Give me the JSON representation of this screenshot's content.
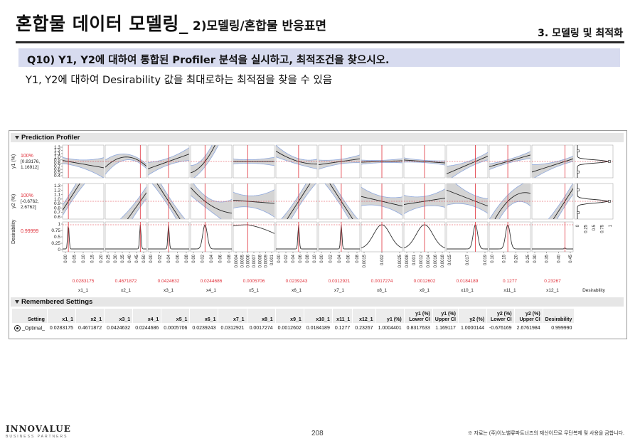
{
  "header": {
    "title": "혼합물 데이터 모델링_",
    "subtitle": "2)모델링/혼합물 반응표면",
    "section": "3. 모델링 및 최적화"
  },
  "question": "Q10) Y1, Y2에 대하여 통합된 Profiler 분석을 실시하고, 최적조건을 찾으시오.",
  "description": "Y1, Y2에 대하여 Desirability 값을 최대로하는 최적점을 찾을 수 있음",
  "profiler": {
    "title": "Prediction Profiler",
    "rows": [
      {
        "label": "y1 (%)",
        "pct": "100%",
        "ci": [
          "[0.83176,",
          "1.16912]"
        ],
        "ticks": [
          "1.3",
          "1.2",
          "1.1",
          "1.0",
          "0.9",
          "0.8",
          "0.7",
          "0.6",
          "0.5",
          "0.4"
        ]
      },
      {
        "label": "y2 (%)",
        "pct": "100%",
        "ci": [
          "[-0.6762,",
          "2.6762]"
        ],
        "ticks": [
          "1.3",
          "1.2",
          "1.1",
          "1.0",
          "0.9",
          "0.8",
          "0.7",
          "0.6"
        ]
      },
      {
        "label": "Desirability",
        "pct": "0.99999",
        "ci": [],
        "ticks": [
          "1",
          "0.75",
          "0.5",
          "0.25",
          "0"
        ]
      }
    ],
    "factors": [
      {
        "name": "x1_1",
        "value": "0.0283175",
        "ticks": [
          "0.00",
          "0.05",
          "0.10",
          "0.15",
          "0.20"
        ]
      },
      {
        "name": "x2_1",
        "value": "0.4671872",
        "ticks": [
          "0.25",
          "0.30",
          "0.35",
          "0.40",
          "0.45",
          "0.50"
        ]
      },
      {
        "name": "x3_1",
        "value": "0.0424632",
        "ticks": [
          "0.00",
          "0.02",
          "0.04",
          "0.06",
          "0.08"
        ]
      },
      {
        "name": "x4_1",
        "value": "0.0244686",
        "ticks": [
          "0.00",
          "0.02",
          "0.04",
          "0.06",
          "0.08"
        ]
      },
      {
        "name": "x5_1",
        "value": "0.0005706",
        "ticks": [
          "0.0004",
          "0.0005",
          "0.0006",
          "0.0007",
          "0.0008",
          "0.0009",
          "0.001"
        ]
      },
      {
        "name": "x6_1",
        "value": "0.0239243",
        "ticks": [
          "0.00",
          "0.02",
          "0.04",
          "0.06",
          "0.08",
          "0.10"
        ]
      },
      {
        "name": "x7_1",
        "value": "0.0312921",
        "ticks": [
          "0.00",
          "0.02",
          "0.04",
          "0.06",
          "0.08"
        ]
      },
      {
        "name": "x8_1",
        "value": "0.0017274",
        "ticks": [
          "0.0015",
          "0.002",
          "0.0025"
        ]
      },
      {
        "name": "x9_1",
        "value": "0.0012602",
        "ticks": [
          "0.0008",
          "0.001",
          "0.0012",
          "0.0014",
          "0.0016",
          "0.0018"
        ]
      },
      {
        "name": "x10_1",
        "value": "0.0184189",
        "ticks": [
          "0.015",
          "0.017",
          "0.019"
        ]
      },
      {
        "name": "x11_1",
        "value": "0.1277",
        "ticks": [
          "0.10",
          "0.15",
          "0.20",
          "0.25"
        ]
      },
      {
        "name": "x12_1",
        "value": "0.23267",
        "ticks": [
          "0.30",
          "0.35",
          "0.40",
          "0.45"
        ]
      }
    ],
    "desirability_label": "Desirability",
    "desirability_ticks": [
      "0",
      "0.25",
      "0.5",
      "0.75",
      "1"
    ]
  },
  "remembered": {
    "title": "Remembered Settings",
    "headers": [
      "Setting",
      "x1_1",
      "x2_1",
      "x3_1",
      "x4_1",
      "x5_1",
      "x6_1",
      "x7_1",
      "x8_1",
      "x9_1",
      "x10_1",
      "x11_1",
      "x12_1",
      "y1 (%)",
      "y1 (%) Lower CI",
      "y1 (%) Upper CI",
      "y2 (%)",
      "y2 (%) Lower CI",
      "y2 (%) Upper CI",
      "Desirability"
    ],
    "row": [
      "_Optimal_",
      "0.0283175",
      "0.4671872",
      "0.0424632",
      "0.0244686",
      "0.0005706",
      "0.0239243",
      "0.0312921",
      "0.0017274",
      "0.0012602",
      "0.0184189",
      "0.1277",
      "0.23267",
      "1.0004401",
      "0.8317633",
      "1.169117",
      "1.0000144",
      "-0.676169",
      "2.6761984",
      "0.999990"
    ]
  },
  "footer": {
    "logo": "INNOVALUE",
    "logo_sub": "BUSINESS PARTNERS",
    "page": "208",
    "notice": "※ 자료는 (주)이노밸류파트너즈의 재산이므로 무단복제 및 사용을 금합니다."
  },
  "colors": {
    "accent_bar": "#d7dbef",
    "red_line": "#e0303a",
    "ci_band": "#d4d4d4",
    "ci_edge": "#8fa8dc"
  }
}
